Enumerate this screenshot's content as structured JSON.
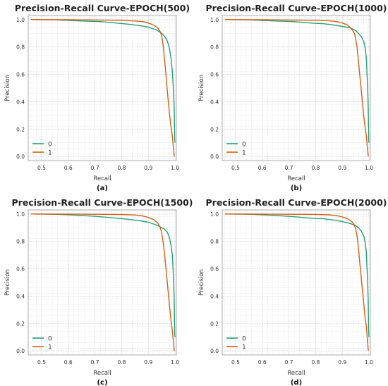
{
  "colors": {
    "class0": "#2a9d77",
    "class1": "#d2601a",
    "grid": "#d6d6d6",
    "frame": "#9a9a9a"
  },
  "chart_data": [
    {
      "type": "line",
      "title": "Precision-Recall Curve-EPOCH(500)",
      "caption": "(a)",
      "xlabel": "Recall",
      "ylabel": "Precision",
      "xlim": [
        0.45,
        1.005
      ],
      "ylim": [
        -0.03,
        1.03
      ],
      "xticks": [
        "0.5",
        "0.6",
        "0.7",
        "0.8",
        "0.9",
        "1.0"
      ],
      "yticks": [
        "0.0",
        "0.2",
        "0.4",
        "0.6",
        "0.8",
        "1.0"
      ],
      "grid": true,
      "legend_position": "bottom-left",
      "series": [
        {
          "name": "0",
          "x": [
            0.46,
            0.55,
            0.65,
            0.72,
            0.78,
            0.83,
            0.87,
            0.9,
            0.93,
            0.95,
            0.96,
            0.97,
            0.975,
            0.98,
            0.985,
            0.99,
            0.992,
            0.995,
            0.997,
            0.998,
            0.999,
            1.0
          ],
          "y": [
            1.0,
            0.998,
            0.99,
            0.985,
            0.975,
            0.965,
            0.955,
            0.945,
            0.925,
            0.9,
            0.88,
            0.85,
            0.82,
            0.78,
            0.72,
            0.62,
            0.55,
            0.45,
            0.33,
            0.2,
            0.12,
            0.1
          ]
        },
        {
          "name": "1",
          "x": [
            0.46,
            0.6,
            0.7,
            0.8,
            0.85,
            0.88,
            0.9,
            0.92,
            0.935,
            0.945,
            0.95,
            0.955,
            0.96,
            0.965,
            0.97,
            0.975,
            0.98,
            0.985,
            0.99,
            0.993,
            0.995,
            0.997
          ],
          "y": [
            1.0,
            0.999,
            0.997,
            0.995,
            0.99,
            0.985,
            0.975,
            0.96,
            0.94,
            0.91,
            0.88,
            0.82,
            0.72,
            0.62,
            0.5,
            0.4,
            0.3,
            0.22,
            0.15,
            0.08,
            0.05,
            0.0
          ]
        }
      ]
    },
    {
      "type": "line",
      "title": "Precision-Recall Curve-EPOCH(1000)",
      "caption": "(b)",
      "xlabel": "Recall",
      "ylabel": "Precision",
      "xlim": [
        0.45,
        1.005
      ],
      "ylim": [
        -0.03,
        1.03
      ],
      "xticks": [
        "0.5",
        "0.6",
        "0.7",
        "0.8",
        "0.9",
        "1.0"
      ],
      "yticks": [
        "0.0",
        "0.2",
        "0.4",
        "0.6",
        "0.8",
        "1.0"
      ],
      "grid": true,
      "legend_position": "bottom-left",
      "series": [
        {
          "name": "0",
          "x": [
            0.46,
            0.55,
            0.65,
            0.72,
            0.78,
            0.83,
            0.87,
            0.9,
            0.93,
            0.95,
            0.96,
            0.97,
            0.975,
            0.98,
            0.985,
            0.99,
            0.992,
            0.995,
            0.997,
            0.998,
            0.999,
            1.0
          ],
          "y": [
            1.0,
            0.998,
            0.99,
            0.985,
            0.975,
            0.97,
            0.96,
            0.95,
            0.94,
            0.92,
            0.9,
            0.88,
            0.86,
            0.84,
            0.8,
            0.72,
            0.62,
            0.5,
            0.35,
            0.2,
            0.12,
            0.1
          ]
        },
        {
          "name": "1",
          "x": [
            0.46,
            0.6,
            0.7,
            0.8,
            0.85,
            0.88,
            0.9,
            0.92,
            0.935,
            0.945,
            0.95,
            0.955,
            0.96,
            0.965,
            0.97,
            0.975,
            0.98,
            0.985,
            0.99,
            0.993,
            0.995,
            0.997
          ],
          "y": [
            1.0,
            0.999,
            0.997,
            0.995,
            0.992,
            0.985,
            0.975,
            0.96,
            0.93,
            0.9,
            0.86,
            0.8,
            0.7,
            0.6,
            0.5,
            0.4,
            0.3,
            0.22,
            0.15,
            0.08,
            0.05,
            0.0
          ]
        }
      ]
    },
    {
      "type": "line",
      "title": "Precision-Recall Curve-EPOCH(1500)",
      "caption": "(c)",
      "xlabel": "Recall",
      "ylabel": "Precision",
      "xlim": [
        0.45,
        1.005
      ],
      "ylim": [
        -0.03,
        1.03
      ],
      "xticks": [
        "0.5",
        "0.6",
        "0.7",
        "0.8",
        "0.9",
        "1.0"
      ],
      "yticks": [
        "0.0",
        "0.2",
        "0.4",
        "0.6",
        "0.8",
        "1.0"
      ],
      "grid": true,
      "legend_position": "bottom-left",
      "series": [
        {
          "name": "0",
          "x": [
            0.46,
            0.55,
            0.65,
            0.72,
            0.78,
            0.83,
            0.87,
            0.9,
            0.93,
            0.95,
            0.96,
            0.97,
            0.975,
            0.98,
            0.985,
            0.99,
            0.992,
            0.995,
            0.997,
            0.998,
            0.999,
            1.0
          ],
          "y": [
            1.0,
            0.998,
            0.99,
            0.98,
            0.97,
            0.96,
            0.95,
            0.94,
            0.92,
            0.9,
            0.89,
            0.87,
            0.85,
            0.82,
            0.77,
            0.7,
            0.62,
            0.5,
            0.35,
            0.2,
            0.12,
            0.1
          ]
        },
        {
          "name": "1",
          "x": [
            0.46,
            0.6,
            0.7,
            0.8,
            0.85,
            0.88,
            0.9,
            0.92,
            0.935,
            0.945,
            0.95,
            0.955,
            0.96,
            0.965,
            0.97,
            0.975,
            0.98,
            0.985,
            0.99,
            0.993,
            0.995,
            0.997
          ],
          "y": [
            1.0,
            0.999,
            0.998,
            0.996,
            0.993,
            0.985,
            0.975,
            0.96,
            0.935,
            0.9,
            0.86,
            0.8,
            0.72,
            0.62,
            0.52,
            0.42,
            0.32,
            0.22,
            0.15,
            0.08,
            0.05,
            0.0
          ]
        }
      ]
    },
    {
      "type": "line",
      "title": "Precision-Recall Curve-EPOCH(2000)",
      "caption": "(d)",
      "xlabel": "Recall",
      "ylabel": "Precision",
      "xlim": [
        0.45,
        1.005
      ],
      "ylim": [
        -0.03,
        1.03
      ],
      "xticks": [
        "0.5",
        "0.6",
        "0.7",
        "0.8",
        "0.9",
        "1.0"
      ],
      "yticks": [
        "0.0",
        "0.2",
        "0.4",
        "0.6",
        "0.8",
        "1.0"
      ],
      "grid": true,
      "legend_position": "bottom-left",
      "series": [
        {
          "name": "0",
          "x": [
            0.46,
            0.55,
            0.65,
            0.72,
            0.78,
            0.83,
            0.87,
            0.9,
            0.93,
            0.95,
            0.96,
            0.97,
            0.975,
            0.98,
            0.985,
            0.99,
            0.992,
            0.995,
            0.997,
            0.998,
            0.999,
            1.0
          ],
          "y": [
            1.0,
            0.998,
            0.99,
            0.98,
            0.97,
            0.965,
            0.955,
            0.945,
            0.93,
            0.915,
            0.9,
            0.88,
            0.86,
            0.84,
            0.8,
            0.72,
            0.62,
            0.5,
            0.35,
            0.2,
            0.12,
            0.1
          ]
        },
        {
          "name": "1",
          "x": [
            0.46,
            0.6,
            0.7,
            0.8,
            0.85,
            0.88,
            0.9,
            0.92,
            0.935,
            0.945,
            0.95,
            0.955,
            0.96,
            0.965,
            0.97,
            0.975,
            0.98,
            0.985,
            0.99,
            0.993,
            0.995,
            0.997
          ],
          "y": [
            1.0,
            0.999,
            0.998,
            0.997,
            0.994,
            0.988,
            0.978,
            0.965,
            0.945,
            0.92,
            0.89,
            0.84,
            0.76,
            0.65,
            0.55,
            0.45,
            0.35,
            0.25,
            0.18,
            0.1,
            0.06,
            0.0
          ]
        }
      ]
    }
  ]
}
